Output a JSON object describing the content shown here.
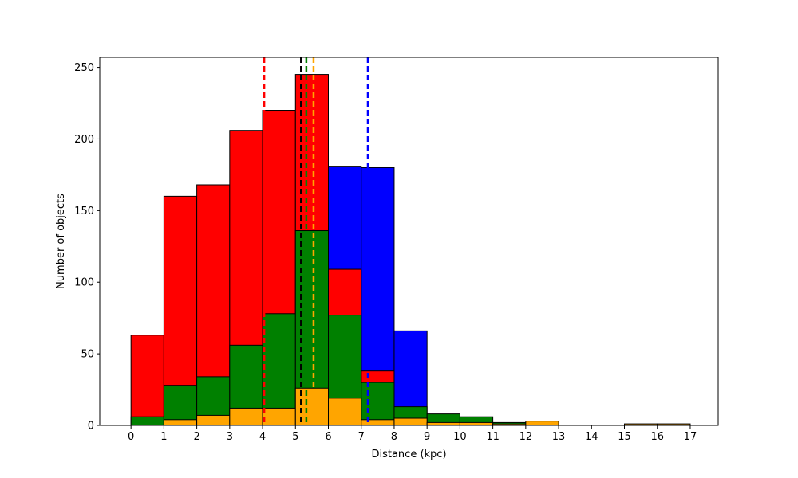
{
  "chart_data": {
    "type": "bar",
    "title": "",
    "xlabel": "Distance (kpc)",
    "ylabel": "Number of objects",
    "xlim": [
      -0.95,
      17.85
    ],
    "ylim": [
      0,
      257
    ],
    "x_ticks": [
      0,
      1,
      2,
      3,
      4,
      5,
      6,
      7,
      8,
      9,
      10,
      11,
      12,
      13,
      14,
      15,
      16,
      17
    ],
    "y_ticks": [
      0,
      50,
      100,
      150,
      200,
      250
    ],
    "bin_edges": [
      0,
      1,
      2,
      3,
      4,
      5,
      6,
      7,
      8,
      9,
      10,
      11,
      12,
      13,
      14,
      15,
      16,
      17
    ],
    "grid": false,
    "series": [
      {
        "color": "#0000ff",
        "values": [
          0,
          0,
          0,
          0,
          0,
          0,
          181,
          180,
          66,
          0,
          0,
          0,
          0,
          0,
          0,
          0,
          0
        ]
      },
      {
        "color": "#ff0000",
        "values": [
          63,
          160,
          168,
          206,
          220,
          245,
          109,
          38,
          0,
          0,
          0,
          0,
          0,
          0,
          0,
          0,
          0
        ]
      },
      {
        "color": "#008000",
        "values": [
          6,
          28,
          34,
          56,
          78,
          136,
          77,
          30,
          13,
          8,
          6,
          2,
          0,
          0,
          0,
          1,
          1
        ]
      },
      {
        "color": "#ffa500",
        "values": [
          0,
          4,
          7,
          12,
          12,
          26,
          19,
          4,
          5,
          2,
          2,
          1,
          3,
          0,
          0,
          1,
          1
        ]
      }
    ],
    "vlines": [
      {
        "x": 4.05,
        "color": "#ff0000"
      },
      {
        "x": 5.17,
        "color": "#000000"
      },
      {
        "x": 5.33,
        "color": "#008000"
      },
      {
        "x": 5.55,
        "color": "#ffa500"
      },
      {
        "x": 7.2,
        "color": "#0000ff"
      }
    ]
  }
}
